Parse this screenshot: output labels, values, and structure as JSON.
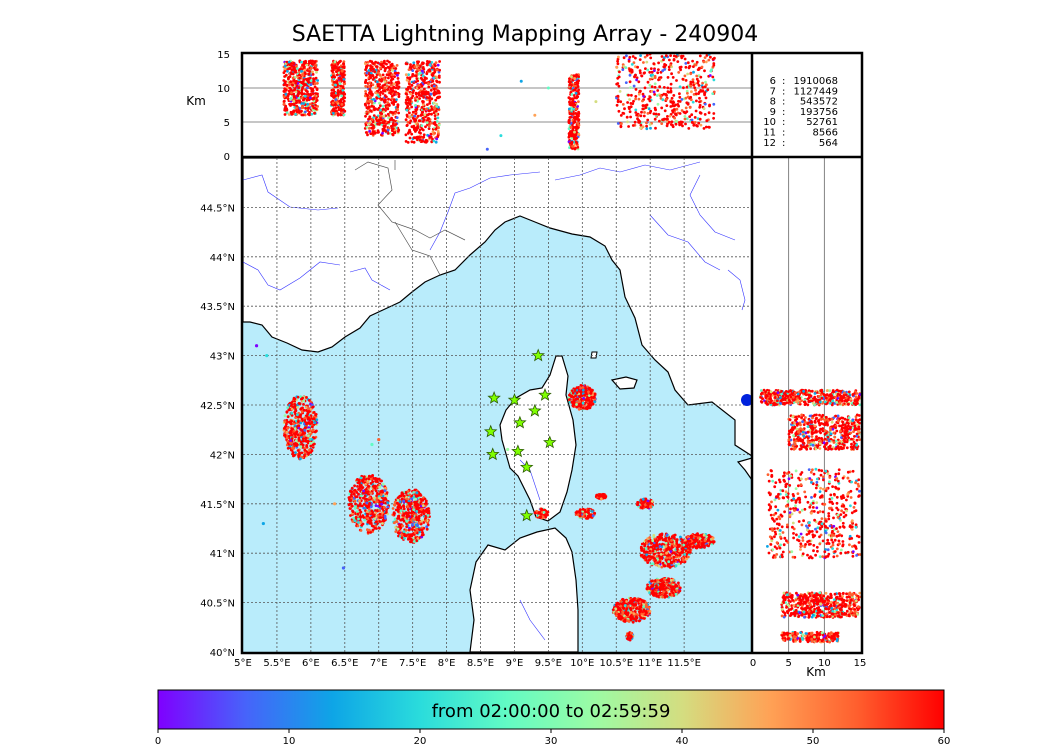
{
  "figure": {
    "title": "SAETTA Lightning Mapping Array - 240904"
  },
  "chart_data": [
    {
      "type": "scatter",
      "panel": "altitude-vs-longitude",
      "ylabel": "Km",
      "ylim": [
        0,
        15
      ],
      "yticks": [
        "0",
        "5",
        "10",
        "15"
      ],
      "ref_lines_km": [
        5,
        10
      ],
      "clusters": [
        {
          "lon_min": 5.6,
          "lon_max": 6.1,
          "alt_min": 6,
          "alt_max": 14
        },
        {
          "lon_min": 6.3,
          "lon_max": 6.5,
          "alt_min": 6,
          "alt_max": 14
        },
        {
          "lon_min": 6.8,
          "lon_max": 7.3,
          "alt_min": 3,
          "alt_max": 14
        },
        {
          "lon_min": 7.4,
          "lon_max": 7.9,
          "alt_min": 2,
          "alt_max": 14
        },
        {
          "lon_min": 9.8,
          "lon_max": 9.95,
          "alt_min": 1,
          "alt_max": 12
        },
        {
          "lon_min": 10.5,
          "lon_max": 11.95,
          "alt_min": 4,
          "alt_max": 15
        }
      ],
      "scattered_points": [
        {
          "lon": 9.1,
          "alt": 11
        },
        {
          "lon": 9.5,
          "alt": 10
        },
        {
          "lon": 9.3,
          "alt": 6
        },
        {
          "lon": 8.6,
          "alt": 1
        },
        {
          "lon": 8.8,
          "alt": 3
        },
        {
          "lon": 10.2,
          "alt": 8
        }
      ]
    },
    {
      "type": "table",
      "panel": "station-counts",
      "rows": [
        {
          "station": "6",
          "count": "1910068",
          "color": "#000000"
        },
        {
          "station": "7",
          "count": "1127449",
          "color": "#ff0000"
        },
        {
          "station": "8",
          "count": "543572",
          "color": "#000000"
        },
        {
          "station": "9",
          "count": "193756",
          "color": "#000000"
        },
        {
          "station": "10",
          "count": "52761",
          "color": "#000000"
        },
        {
          "station": "11",
          "count": "8566",
          "color": "#000000"
        },
        {
          "station": "12",
          "count": "564",
          "color": "#000000"
        }
      ]
    },
    {
      "type": "scatter",
      "panel": "plan-view-map",
      "xlim": [
        5,
        12.5
      ],
      "ylim": [
        40,
        45
      ],
      "xticks": [
        "5°E",
        "5.5°E",
        "6°E",
        "6.5°E",
        "7°E",
        "7.5°E",
        "8°E",
        "8.5°E",
        "9°E",
        "9.5°E",
        "10°E",
        "10.5°E",
        "11°E",
        "11.5°E"
      ],
      "yticks": [
        "40°N",
        "40.5°N",
        "41°N",
        "41.5°N",
        "42°N",
        "42.5°N",
        "43°N",
        "43.5°N",
        "44°N",
        "44.5°N"
      ],
      "grid": true,
      "clusters": [
        {
          "lon_min": 5.6,
          "lon_max": 6.1,
          "lat_min": 41.95,
          "lat_max": 42.6
        },
        {
          "lon_min": 6.55,
          "lon_max": 7.15,
          "lat_min": 41.2,
          "lat_max": 41.8
        },
        {
          "lon_min": 7.2,
          "lon_max": 7.75,
          "lat_min": 41.1,
          "lat_max": 41.65
        },
        {
          "lon_min": 9.3,
          "lon_max": 9.5,
          "lat_min": 41.35,
          "lat_max": 41.45
        },
        {
          "lon_min": 9.8,
          "lon_max": 10.2,
          "lat_min": 42.45,
          "lat_max": 42.7
        },
        {
          "lon_min": 9.9,
          "lon_max": 10.2,
          "lat_min": 41.35,
          "lat_max": 41.45
        },
        {
          "lon_min": 10.2,
          "lon_max": 10.35,
          "lat_min": 41.55,
          "lat_max": 41.6
        },
        {
          "lon_min": 10.8,
          "lon_max": 11.05,
          "lat_min": 41.45,
          "lat_max": 41.55
        },
        {
          "lon_min": 10.85,
          "lon_max": 11.6,
          "lat_min": 40.85,
          "lat_max": 41.2
        },
        {
          "lon_min": 11.5,
          "lon_max": 11.95,
          "lat_min": 41.05,
          "lat_max": 41.2
        },
        {
          "lon_min": 10.95,
          "lon_max": 11.45,
          "lat_min": 40.55,
          "lat_max": 40.75
        },
        {
          "lon_min": 10.45,
          "lon_max": 11.0,
          "lat_min": 40.3,
          "lat_max": 40.55
        },
        {
          "lon_min": 10.65,
          "lon_max": 10.75,
          "lat_min": 40.12,
          "lat_max": 40.2
        }
      ],
      "scattered_points": [
        {
          "lon": 5.2,
          "lat": 43.1
        },
        {
          "lon": 5.35,
          "lat": 43.0
        },
        {
          "lon": 6.35,
          "lat": 41.5
        },
        {
          "lon": 6.48,
          "lat": 40.85
        },
        {
          "lon": 6.9,
          "lat": 42.1
        },
        {
          "lon": 7.0,
          "lat": 42.15
        },
        {
          "lon": 5.3,
          "lat": 41.3
        },
        {
          "lon": 8.9,
          "lat": 42.05
        }
      ],
      "stations": [
        {
          "lon": 9.35,
          "lat": 43.0
        },
        {
          "lon": 8.7,
          "lat": 42.57
        },
        {
          "lon": 9.0,
          "lat": 42.55
        },
        {
          "lon": 9.45,
          "lat": 42.6
        },
        {
          "lon": 9.3,
          "lat": 42.44
        },
        {
          "lon": 9.08,
          "lat": 42.32
        },
        {
          "lon": 8.65,
          "lat": 42.23
        },
        {
          "lon": 9.52,
          "lat": 42.12
        },
        {
          "lon": 8.68,
          "lat": 42.0
        },
        {
          "lon": 9.05,
          "lat": 42.03
        },
        {
          "lon": 9.18,
          "lat": 41.87
        },
        {
          "lon": 9.18,
          "lat": 41.38
        }
      ]
    },
    {
      "type": "scatter",
      "panel": "latitude-vs-altitude",
      "xlabel": "Km",
      "xlim": [
        0,
        15
      ],
      "xticks": [
        "0",
        "5",
        "10",
        "15"
      ],
      "ref_lines_km": [
        5,
        10
      ],
      "clusters": [
        {
          "alt_min": 1,
          "alt_max": 15,
          "lat_min": 42.5,
          "lat_max": 42.65
        },
        {
          "alt_min": 5,
          "alt_max": 15,
          "lat_min": 42.05,
          "lat_max": 42.4
        },
        {
          "alt_min": 2,
          "alt_max": 15,
          "lat_min": 40.95,
          "lat_max": 41.85
        },
        {
          "alt_min": 4,
          "alt_max": 15,
          "lat_min": 40.35,
          "lat_max": 40.6
        },
        {
          "alt_min": 4,
          "alt_max": 12,
          "lat_min": 40.1,
          "lat_max": 40.2
        }
      ]
    },
    {
      "type": "heatmap",
      "panel": "time-colorbar",
      "caption": "from 02:00:00 to 02:59:59",
      "range_minutes": [
        0,
        60
      ],
      "ticks": [
        "0",
        "10",
        "20",
        "30",
        "40",
        "50",
        "60"
      ],
      "colormap": "rainbow",
      "colors": [
        "#7f00ff",
        "#4763fa",
        "#0ea5e6",
        "#2adcdc",
        "#62fbc4",
        "#9cfba4",
        "#d4dd80",
        "#ffa256",
        "#ff5f2e",
        "#ff0000"
      ]
    }
  ],
  "colors": {
    "sea": "#b9ecfb",
    "land": "#ffffff",
    "coast": "#000000",
    "rivers": "#3333ff",
    "borders": "#555555",
    "station_fill": "#7fff00",
    "station_edge": "#2a5a00"
  }
}
